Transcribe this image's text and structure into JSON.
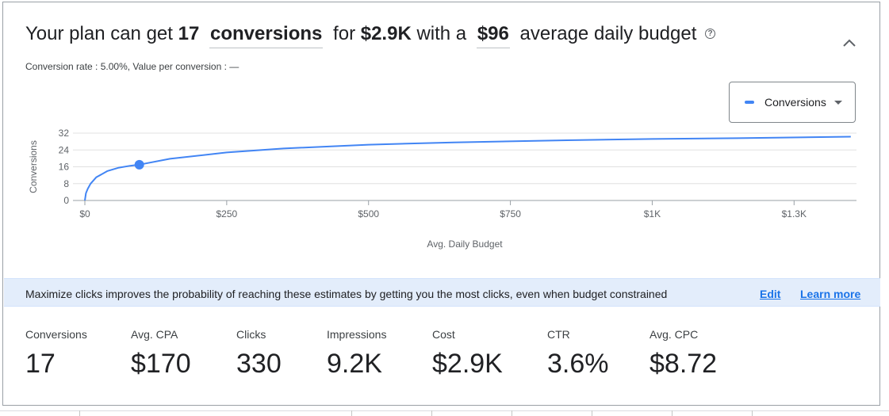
{
  "headline": {
    "prefix": "Your plan can get",
    "conversions_count": "17",
    "conversions_dropdown": "conversions",
    "for_text": "for",
    "cost": "$2.9K",
    "with_text": "with a",
    "budget_dropdown": "$96",
    "suffix": "average daily budget",
    "help_icon": "help-circle-icon"
  },
  "subline": "Conversion rate : 5.00%, Value per conversion : —",
  "collapse_icon": "chevron-up-icon",
  "legend": {
    "label": "Conversions",
    "color": "#4285f4"
  },
  "chart_data": {
    "type": "line",
    "ylabel": "Conversions",
    "xlabel": "Avg. Daily Budget",
    "y_ticks": [
      "0",
      "8",
      "16",
      "24",
      "32"
    ],
    "y_tick_values": [
      0,
      8,
      16,
      24,
      32
    ],
    "x_ticks": [
      "$0",
      "$250",
      "$500",
      "$750",
      "$1K",
      "$1.3K"
    ],
    "x_tick_values": [
      0,
      250,
      500,
      750,
      1000,
      1250
    ],
    "xlim": [
      0,
      1360
    ],
    "ylim": [
      0,
      32
    ],
    "grid": true,
    "series": [
      {
        "name": "Conversions",
        "color": "#4285f4",
        "x": [
          0,
          2,
          5,
          10,
          20,
          40,
          60,
          80,
          96,
          150,
          250,
          350,
          500,
          650,
          850,
          1000,
          1150,
          1350
        ],
        "y": [
          0,
          3.5,
          5.5,
          8.0,
          11.0,
          14.0,
          15.6,
          16.5,
          17,
          19.8,
          22.8,
          24.7,
          26.5,
          27.6,
          28.6,
          29.2,
          29.6,
          30.3
        ]
      }
    ],
    "highlight_point": {
      "x": 96,
      "y": 17,
      "color": "#4285f4"
    }
  },
  "banner": {
    "text": "Maximize clicks improves the probability of reaching these estimates by getting you the most clicks, even when budget constrained",
    "edit_label": "Edit",
    "learn_more_label": "Learn more",
    "link_color": "#1a73e8",
    "background": "#e3edfb"
  },
  "metrics": [
    {
      "label": "Conversions",
      "value": "17"
    },
    {
      "label": "Avg. CPA",
      "value": "$170"
    },
    {
      "label": "Clicks",
      "value": "330"
    },
    {
      "label": "Impressions",
      "value": "9.2K"
    },
    {
      "label": "Cost",
      "value": "$2.9K"
    },
    {
      "label": "CTR",
      "value": "3.6%"
    },
    {
      "label": "Avg. CPC",
      "value": "$8.72"
    }
  ]
}
